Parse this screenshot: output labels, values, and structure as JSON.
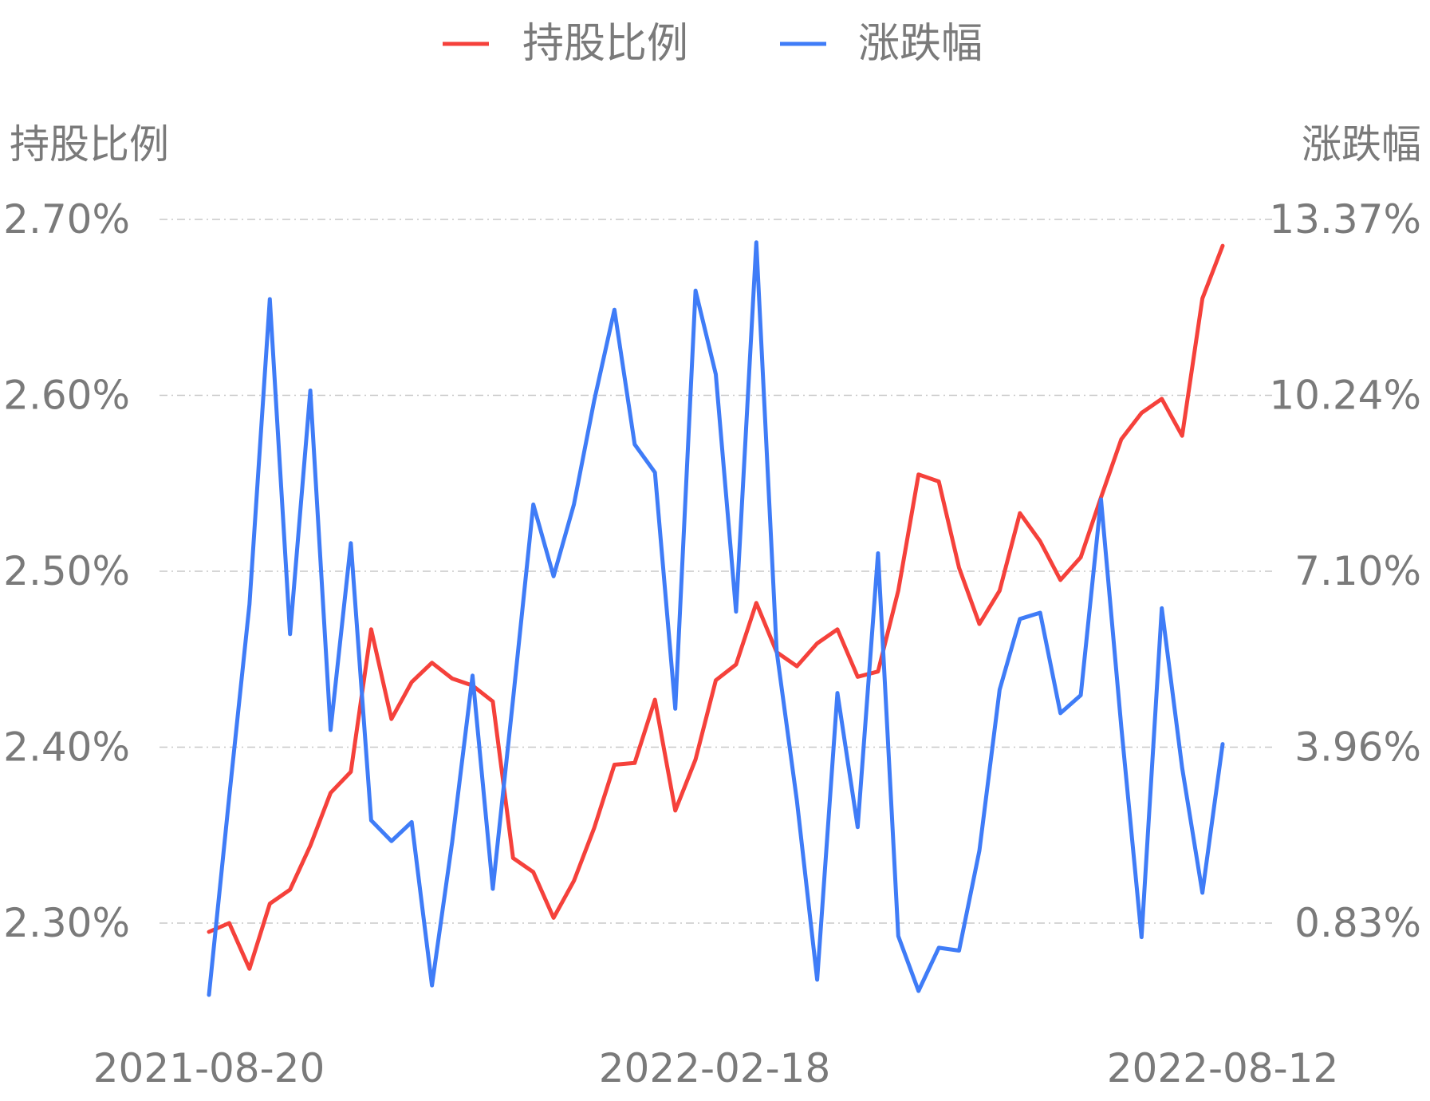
{
  "chart_data": {
    "type": "line",
    "legend": {
      "placement": "top-center",
      "items": [
        {
          "label": "持股比例",
          "color": "#f5413b"
        },
        {
          "label": "涨跌幅",
          "color": "#3f7cf7"
        }
      ]
    },
    "ylabel_left": "持股比例",
    "ylabel_right": "涨跌幅",
    "left_axis": {
      "ylim": [
        2.3,
        2.7
      ],
      "ticks": [
        "2.30%",
        "2.40%",
        "2.50%",
        "2.60%",
        "2.70%"
      ]
    },
    "right_axis": {
      "ylim": [
        0.83,
        13.37
      ],
      "ticks": [
        "0.83%",
        "3.96%",
        "7.10%",
        "10.24%",
        "13.37%"
      ]
    },
    "x_tick_labels": [
      "2021-08-20",
      "2022-02-18",
      "2022-08-12"
    ],
    "grid": true,
    "series": [
      {
        "name": "持股比例",
        "axis": "left",
        "color": "#f5413b",
        "values": [
          2.295,
          2.3,
          2.274,
          2.311,
          2.319,
          2.344,
          2.374,
          2.386,
          2.467,
          2.416,
          2.437,
          2.448,
          2.439,
          2.435,
          2.426,
          2.337,
          2.329,
          2.303,
          2.324,
          2.354,
          2.39,
          2.391,
          2.427,
          2.364,
          2.393,
          2.438,
          2.447,
          2.482,
          2.454,
          2.446,
          2.459,
          2.467,
          2.44,
          2.443,
          2.489,
          2.555,
          2.551,
          2.502,
          2.47,
          2.489,
          2.533,
          2.517,
          2.495,
          2.508,
          2.542,
          2.575,
          2.59,
          2.598,
          2.577,
          2.655,
          2.685
        ]
      },
      {
        "name": "涨跌幅",
        "axis": "right",
        "color": "#3f7cf7",
        "values": [
          -0.45,
          3.08,
          6.51,
          11.95,
          5.98,
          10.32,
          4.27,
          7.6,
          2.66,
          2.29,
          2.63,
          -0.28,
          2.28,
          5.24,
          1.44,
          4.82,
          8.29,
          7.01,
          8.29,
          10.14,
          11.76,
          9.36,
          8.86,
          4.65,
          12.1,
          10.61,
          6.38,
          12.96,
          5.68,
          3.01,
          -0.18,
          4.93,
          2.54,
          7.42,
          0.6,
          -0.38,
          0.39,
          0.34,
          2.12,
          4.99,
          6.25,
          6.36,
          4.57,
          4.89,
          8.38,
          4.33,
          0.58,
          6.44,
          3.6,
          1.37,
          4.02
        ]
      }
    ]
  }
}
